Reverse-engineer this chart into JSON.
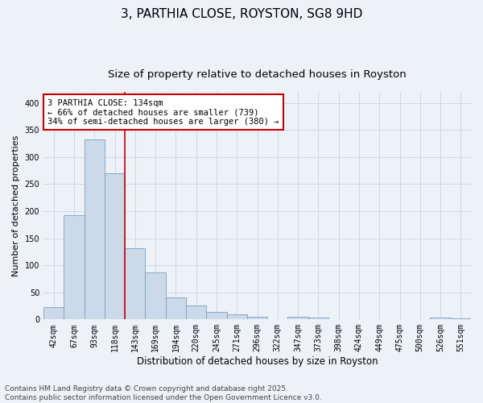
{
  "title": "3, PARTHIA CLOSE, ROYSTON, SG8 9HD",
  "subtitle": "Size of property relative to detached houses in Royston",
  "xlabel": "Distribution of detached houses by size in Royston",
  "ylabel": "Number of detached properties",
  "bins": [
    "42sqm",
    "67sqm",
    "93sqm",
    "118sqm",
    "143sqm",
    "169sqm",
    "194sqm",
    "220sqm",
    "245sqm",
    "271sqm",
    "296sqm",
    "322sqm",
    "347sqm",
    "373sqm",
    "398sqm",
    "424sqm",
    "449sqm",
    "475sqm",
    "500sqm",
    "526sqm",
    "551sqm"
  ],
  "values": [
    23,
    193,
    332,
    270,
    131,
    87,
    40,
    26,
    14,
    9,
    5,
    0,
    5,
    3,
    1,
    0,
    0,
    0,
    0,
    3,
    2
  ],
  "bar_color": "#ccd9e8",
  "bar_edge_color": "#7a9ec0",
  "grid_color": "#ccd8e8",
  "background_color": "#edf2f8",
  "red_line_bin": 3,
  "annotation_text": "3 PARTHIA CLOSE: 134sqm\n← 66% of detached houses are smaller (739)\n34% of semi-detached houses are larger (380) →",
  "annotation_box_color": "#ffffff",
  "annotation_box_edge": "#cc0000",
  "footer_text": "Contains HM Land Registry data © Crown copyright and database right 2025.\nContains public sector information licensed under the Open Government Licence v3.0.",
  "ylim": [
    0,
    420
  ],
  "yticks": [
    0,
    50,
    100,
    150,
    200,
    250,
    300,
    350,
    400
  ],
  "title_fontsize": 11,
  "subtitle_fontsize": 9.5,
  "xlabel_fontsize": 8.5,
  "ylabel_fontsize": 8,
  "tick_fontsize": 7,
  "footer_fontsize": 6.5,
  "annot_fontsize": 7.5
}
